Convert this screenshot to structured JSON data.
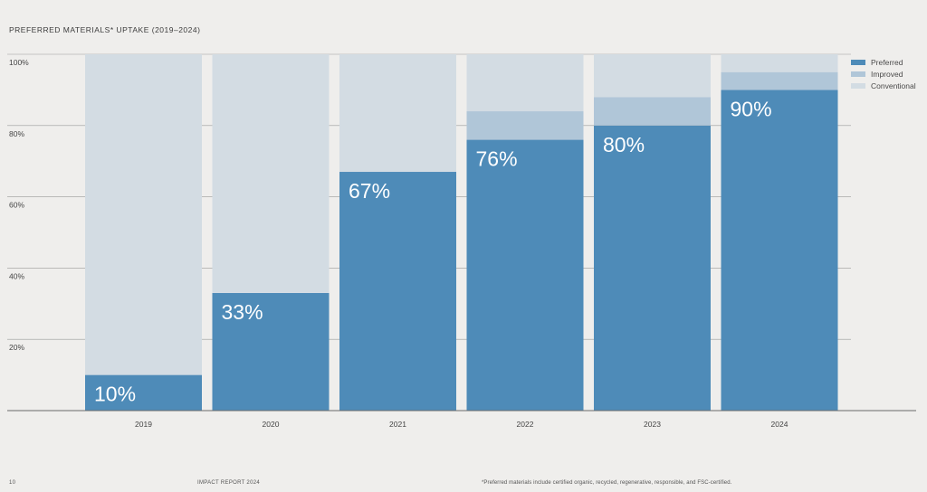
{
  "page": {
    "title": "PREFERRED MATERIALS* UPTAKE (2019–2024)",
    "page_number": "10",
    "report_name": "IMPACT REPORT 2024",
    "footnote": "*Preferred materials include certified organic, recycled, regenerative, responsible, and FSC-certified."
  },
  "chart_data": {
    "type": "bar",
    "stacked": true,
    "title": "PREFERRED MATERIALS* UPTAKE (2019–2024)",
    "categories": [
      "2019",
      "2020",
      "2021",
      "2022",
      "2023",
      "2024"
    ],
    "series": [
      {
        "name": "Preferred",
        "color": "#4e8bb8",
        "values": [
          10,
          33,
          67,
          76,
          80,
          90
        ]
      },
      {
        "name": "Improved",
        "color": "#b0c6d8",
        "values": [
          0,
          0,
          0,
          8,
          8,
          5
        ]
      },
      {
        "name": "Conventional",
        "color": "#d3dce3",
        "values": [
          90,
          67,
          33,
          16,
          12,
          5
        ]
      }
    ],
    "data_labels": [
      "10%",
      "33%",
      "67%",
      "76%",
      "80%",
      "90%"
    ],
    "yticks": [
      "20%",
      "40%",
      "60%",
      "80%",
      "100%"
    ],
    "ylim": [
      0,
      100
    ],
    "grid": true,
    "legend_position": "top-right"
  }
}
